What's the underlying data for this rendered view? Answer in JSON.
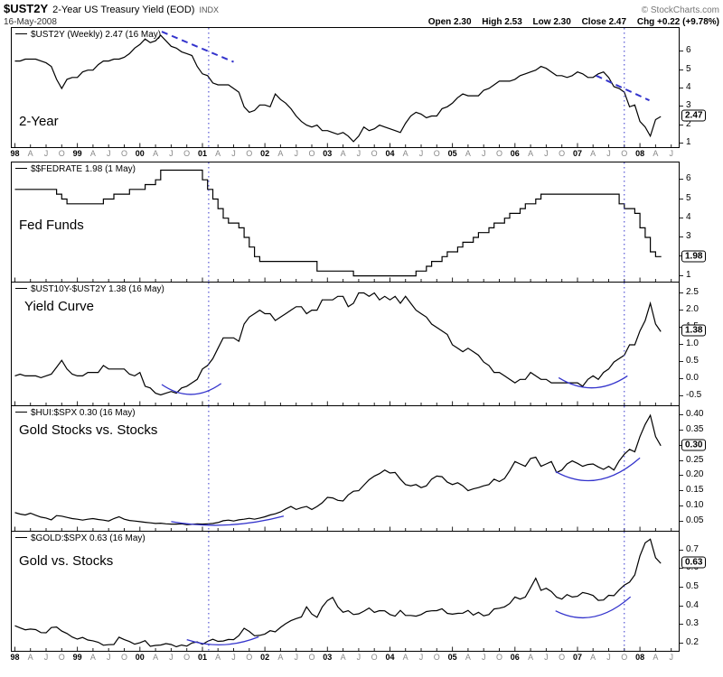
{
  "header": {
    "symbol": "$UST2Y",
    "title": "2-Year US Treasury Yield (EOD)",
    "exchange": "INDX",
    "date": "16-May-2008",
    "copyright": "© StockCharts.com",
    "quote": {
      "open": "Open 2.30",
      "high": "High 2.53",
      "low": "Low 2.30",
      "close": "Close 2.47",
      "chg": "Chg +0.22 (+9.78%)"
    }
  },
  "theme": {
    "line": "#000000",
    "annotation": "#3333cc"
  },
  "x_axis": {
    "domain": [
      1997.95,
      2008.62
    ],
    "ticks": [
      {
        "p": 1998,
        "l": "98",
        "y": true
      },
      {
        "p": 1998.25,
        "l": "A"
      },
      {
        "p": 1998.5,
        "l": "J"
      },
      {
        "p": 1998.75,
        "l": "O"
      },
      {
        "p": 1999,
        "l": "99",
        "y": true
      },
      {
        "p": 1999.25,
        "l": "A"
      },
      {
        "p": 1999.5,
        "l": "J"
      },
      {
        "p": 1999.75,
        "l": "O"
      },
      {
        "p": 2000,
        "l": "00",
        "y": true
      },
      {
        "p": 2000.25,
        "l": "A"
      },
      {
        "p": 2000.5,
        "l": "J"
      },
      {
        "p": 2000.75,
        "l": "O"
      },
      {
        "p": 2001,
        "l": "01",
        "y": true
      },
      {
        "p": 2001.25,
        "l": "A"
      },
      {
        "p": 2001.5,
        "l": "J"
      },
      {
        "p": 2001.75,
        "l": "O"
      },
      {
        "p": 2002,
        "l": "02",
        "y": true
      },
      {
        "p": 2002.25,
        "l": "A"
      },
      {
        "p": 2002.5,
        "l": "J"
      },
      {
        "p": 2002.75,
        "l": "O"
      },
      {
        "p": 2003,
        "l": "03",
        "y": true
      },
      {
        "p": 2003.25,
        "l": "A"
      },
      {
        "p": 2003.5,
        "l": "J"
      },
      {
        "p": 2003.75,
        "l": "O"
      },
      {
        "p": 2004,
        "l": "04",
        "y": true
      },
      {
        "p": 2004.25,
        "l": "A"
      },
      {
        "p": 2004.5,
        "l": "J"
      },
      {
        "p": 2004.75,
        "l": "O"
      },
      {
        "p": 2005,
        "l": "05",
        "y": true
      },
      {
        "p": 2005.25,
        "l": "A"
      },
      {
        "p": 2005.5,
        "l": "J"
      },
      {
        "p": 2005.75,
        "l": "O"
      },
      {
        "p": 2006,
        "l": "06",
        "y": true
      },
      {
        "p": 2006.25,
        "l": "A"
      },
      {
        "p": 2006.5,
        "l": "J"
      },
      {
        "p": 2006.75,
        "l": "O"
      },
      {
        "p": 2007,
        "l": "07",
        "y": true
      },
      {
        "p": 2007.25,
        "l": "A"
      },
      {
        "p": 2007.5,
        "l": "J"
      },
      {
        "p": 2007.75,
        "l": "O"
      },
      {
        "p": 2008,
        "l": "08",
        "y": true
      },
      {
        "p": 2008.25,
        "l": "A"
      },
      {
        "p": 2008.5,
        "l": "J"
      }
    ]
  },
  "chart_data": [
    {
      "id": "p1",
      "type": "line",
      "name": "ust2y",
      "legend": "$UST2Y (Weekly) 2.47 (16 May)",
      "label": "2-Year",
      "ylim": [
        0.8,
        7.3
      ],
      "yticks": [
        6,
        5,
        4,
        3,
        2,
        1
      ],
      "ytick_labels": [
        "6",
        "5",
        "4",
        "3",
        "2",
        "1"
      ],
      "last": "2.47",
      "x_start": 1998,
      "x_step_months": 1,
      "values": [
        5.5,
        5.5,
        5.6,
        5.6,
        5.6,
        5.5,
        5.4,
        5.2,
        4.5,
        4.0,
        4.5,
        4.6,
        4.6,
        4.9,
        5.0,
        5.0,
        5.3,
        5.5,
        5.5,
        5.6,
        5.6,
        5.7,
        5.9,
        6.2,
        6.4,
        6.7,
        6.5,
        6.6,
        6.9,
        6.6,
        6.3,
        6.2,
        6.0,
        5.9,
        5.8,
        5.2,
        4.8,
        4.7,
        4.3,
        4.2,
        4.2,
        4.2,
        4.0,
        3.8,
        3.0,
        2.7,
        2.8,
        3.1,
        3.1,
        3.0,
        3.7,
        3.4,
        3.2,
        2.9,
        2.5,
        2.2,
        2.0,
        1.9,
        2.0,
        1.7,
        1.7,
        1.6,
        1.5,
        1.6,
        1.4,
        1.1,
        1.4,
        1.9,
        1.7,
        1.8,
        2.0,
        1.9,
        1.8,
        1.7,
        1.6,
        2.1,
        2.5,
        2.7,
        2.6,
        2.4,
        2.5,
        2.5,
        2.9,
        3.0,
        3.2,
        3.5,
        3.7,
        3.6,
        3.6,
        3.6,
        3.9,
        4.0,
        4.2,
        4.4,
        4.4,
        4.4,
        4.5,
        4.7,
        4.8,
        4.9,
        5.0,
        5.2,
        5.1,
        4.9,
        4.7,
        4.7,
        4.6,
        4.7,
        4.9,
        4.8,
        4.6,
        4.6,
        4.8,
        4.9,
        4.6,
        4.1,
        4.0,
        3.8,
        3.0,
        3.1,
        2.2,
        1.9,
        1.4,
        2.3,
        2.47
      ],
      "annotations": [
        {
          "type": "vline",
          "x": 2001.1
        },
        {
          "type": "vline",
          "x": 2007.75
        },
        {
          "type": "dash",
          "x1": 2000.35,
          "y1": 7.1,
          "x2": 2001.5,
          "y2": 5.45
        },
        {
          "type": "dash",
          "x1": 2007.3,
          "y1": 4.7,
          "x2": 2008.15,
          "y2": 3.35
        }
      ]
    },
    {
      "id": "p2",
      "type": "line",
      "name": "fedfunds",
      "legend": "$$FEDRATE 1.98 (1 May)",
      "label": "Fed Funds",
      "ylim": [
        0.7,
        6.9
      ],
      "yticks": [
        6,
        5,
        4,
        3,
        2,
        1
      ],
      "ytick_labels": [
        "6",
        "5",
        "4",
        "3",
        "2",
        "1"
      ],
      "last": "1.98",
      "step": true,
      "x_start": 1998,
      "x_step_months": 1,
      "values": [
        5.5,
        5.5,
        5.5,
        5.5,
        5.5,
        5.5,
        5.5,
        5.5,
        5.25,
        5.0,
        4.75,
        4.75,
        4.75,
        4.75,
        4.75,
        4.75,
        4.75,
        5.0,
        5.0,
        5.25,
        5.25,
        5.25,
        5.5,
        5.5,
        5.5,
        5.75,
        5.75,
        6.0,
        6.5,
        6.5,
        6.5,
        6.5,
        6.5,
        6.5,
        6.5,
        6.5,
        6.0,
        5.5,
        5.0,
        4.5,
        4.0,
        3.75,
        3.75,
        3.5,
        3.0,
        2.5,
        2.0,
        1.75,
        1.75,
        1.75,
        1.75,
        1.75,
        1.75,
        1.75,
        1.75,
        1.75,
        1.75,
        1.75,
        1.25,
        1.25,
        1.25,
        1.25,
        1.25,
        1.25,
        1.25,
        1.0,
        1.0,
        1.0,
        1.0,
        1.0,
        1.0,
        1.0,
        1.0,
        1.0,
        1.0,
        1.0,
        1.0,
        1.25,
        1.25,
        1.5,
        1.75,
        1.75,
        2.0,
        2.25,
        2.25,
        2.5,
        2.75,
        2.75,
        3.0,
        3.25,
        3.25,
        3.5,
        3.75,
        3.75,
        4.0,
        4.25,
        4.25,
        4.5,
        4.75,
        4.75,
        5.0,
        5.25,
        5.25,
        5.25,
        5.25,
        5.25,
        5.25,
        5.25,
        5.25,
        5.25,
        5.25,
        5.25,
        5.25,
        5.25,
        5.25,
        5.25,
        4.75,
        4.5,
        4.5,
        4.25,
        3.5,
        3.0,
        2.25,
        2.0,
        1.98
      ],
      "annotations": [
        {
          "type": "vline",
          "x": 2001.1
        },
        {
          "type": "vline",
          "x": 2007.75
        }
      ]
    },
    {
      "id": "p3",
      "type": "line",
      "name": "yield-curve",
      "legend": "$UST10Y-$UST2Y 1.38 (16 May)",
      "label": "Yield Curve",
      "ylim": [
        -0.75,
        2.8
      ],
      "yticks": [
        2.5,
        2.0,
        1.5,
        1.0,
        0.5,
        0.0,
        -0.5
      ],
      "ytick_labels": [
        "2.5",
        "2.0",
        "1.5",
        "1.0",
        "0.5",
        "0.0",
        "-0.5"
      ],
      "last": "1.38",
      "x_start": 1998,
      "x_step_months": 1,
      "values": [
        0.1,
        0.15,
        0.1,
        0.1,
        0.1,
        0.05,
        0.1,
        0.15,
        0.35,
        0.55,
        0.3,
        0.15,
        0.1,
        0.1,
        0.2,
        0.2,
        0.2,
        0.4,
        0.3,
        0.3,
        0.3,
        0.3,
        0.15,
        0.1,
        0.2,
        -0.2,
        -0.25,
        -0.4,
        -0.45,
        -0.4,
        -0.35,
        -0.4,
        -0.25,
        -0.2,
        -0.1,
        0.0,
        0.3,
        0.4,
        0.6,
        0.9,
        1.2,
        1.2,
        1.2,
        1.1,
        1.6,
        1.8,
        1.9,
        2.0,
        1.9,
        1.9,
        1.7,
        1.8,
        1.9,
        2.0,
        2.1,
        2.1,
        1.9,
        2.0,
        2.0,
        2.3,
        2.3,
        2.3,
        2.4,
        2.4,
        2.1,
        2.2,
        2.5,
        2.5,
        2.4,
        2.5,
        2.3,
        2.4,
        2.3,
        2.4,
        2.2,
        2.4,
        2.2,
        2.0,
        1.9,
        1.8,
        1.6,
        1.5,
        1.4,
        1.3,
        1.0,
        0.9,
        0.8,
        0.9,
        0.8,
        0.7,
        0.5,
        0.4,
        0.2,
        0.2,
        0.1,
        0.0,
        -0.1,
        0.0,
        0.0,
        0.2,
        0.1,
        0.0,
        0.0,
        -0.1,
        -0.1,
        -0.1,
        -0.1,
        -0.1,
        -0.1,
        -0.2,
        0.0,
        0.1,
        0.0,
        0.2,
        0.3,
        0.5,
        0.6,
        0.7,
        1.0,
        1.0,
        1.4,
        1.7,
        2.2,
        1.6,
        1.38
      ],
      "annotations": [
        {
          "type": "vline",
          "x": 2001.1
        },
        {
          "type": "vline",
          "x": 2007.75
        },
        {
          "type": "arc",
          "x1": 2000.35,
          "y1": -0.15,
          "x2": 2001.3,
          "y2": -0.12,
          "sag": 0.3
        },
        {
          "type": "arc",
          "x1": 2006.7,
          "y1": 0.05,
          "x2": 2007.8,
          "y2": 0.1,
          "sag": 0.32
        }
      ]
    },
    {
      "id": "p4",
      "type": "line",
      "name": "hui-spx-ratio",
      "legend": "$HUI:$SPX 0.30 (16 May)",
      "label": "Gold Stocks vs. Stocks",
      "ylim": [
        0.02,
        0.43
      ],
      "yticks": [
        0.4,
        0.35,
        0.3,
        0.25,
        0.2,
        0.15,
        0.1,
        0.05
      ],
      "ytick_labels": [
        "0.40",
        "0.35",
        "0.30",
        "0.25",
        "0.20",
        "0.15",
        "0.10",
        "0.05"
      ],
      "last": "0.30",
      "x_start": 1998,
      "x_step_months": 1,
      "values": [
        0.08,
        0.075,
        0.072,
        0.078,
        0.071,
        0.065,
        0.062,
        0.056,
        0.07,
        0.068,
        0.064,
        0.06,
        0.058,
        0.055,
        0.058,
        0.06,
        0.057,
        0.055,
        0.052,
        0.06,
        0.066,
        0.058,
        0.054,
        0.052,
        0.05,
        0.048,
        0.046,
        0.044,
        0.045,
        0.043,
        0.042,
        0.042,
        0.043,
        0.04,
        0.041,
        0.043,
        0.042,
        0.043,
        0.044,
        0.047,
        0.053,
        0.055,
        0.052,
        0.056,
        0.058,
        0.061,
        0.058,
        0.062,
        0.066,
        0.072,
        0.076,
        0.082,
        0.092,
        0.1,
        0.09,
        0.096,
        0.1,
        0.09,
        0.1,
        0.112,
        0.13,
        0.128,
        0.12,
        0.118,
        0.138,
        0.15,
        0.152,
        0.17,
        0.188,
        0.2,
        0.208,
        0.22,
        0.21,
        0.212,
        0.19,
        0.172,
        0.168,
        0.172,
        0.162,
        0.168,
        0.19,
        0.2,
        0.198,
        0.18,
        0.172,
        0.178,
        0.168,
        0.152,
        0.158,
        0.162,
        0.168,
        0.172,
        0.19,
        0.182,
        0.192,
        0.218,
        0.248,
        0.24,
        0.232,
        0.258,
        0.262,
        0.232,
        0.24,
        0.248,
        0.212,
        0.22,
        0.24,
        0.25,
        0.242,
        0.232,
        0.238,
        0.24,
        0.23,
        0.222,
        0.232,
        0.22,
        0.25,
        0.272,
        0.288,
        0.28,
        0.33,
        0.37,
        0.4,
        0.33,
        0.3
      ],
      "annotations": [
        {
          "type": "vline",
          "x": 2001.1
        },
        {
          "type": "vline",
          "x": 2007.75
        },
        {
          "type": "arc",
          "x1": 2000.5,
          "y1": 0.05,
          "x2": 2002.3,
          "y2": 0.068,
          "sag": 0.02
        },
        {
          "type": "arc",
          "x1": 2006.65,
          "y1": 0.215,
          "x2": 2008.0,
          "y2": 0.26,
          "sag": 0.05
        }
      ]
    },
    {
      "id": "p5",
      "type": "line",
      "name": "gold-spx-ratio",
      "legend": "$GOLD:$SPX 0.63 (16 May)",
      "label": "Gold vs. Stocks",
      "ylim": [
        0.16,
        0.8
      ],
      "yticks": [
        0.7,
        0.6,
        0.5,
        0.4,
        0.3,
        0.2
      ],
      "ytick_labels": [
        "0.7",
        "0.6",
        "0.5",
        "0.4",
        "0.3",
        "0.2"
      ],
      "last": "0.63",
      "x_start": 1998,
      "x_step_months": 1,
      "values": [
        0.295,
        0.283,
        0.273,
        0.277,
        0.274,
        0.258,
        0.257,
        0.285,
        0.288,
        0.266,
        0.253,
        0.234,
        0.223,
        0.232,
        0.218,
        0.214,
        0.206,
        0.19,
        0.193,
        0.194,
        0.233,
        0.22,
        0.21,
        0.196,
        0.203,
        0.215,
        0.184,
        0.189,
        0.191,
        0.199,
        0.194,
        0.182,
        0.191,
        0.185,
        0.202,
        0.208,
        0.195,
        0.211,
        0.222,
        0.211,
        0.213,
        0.221,
        0.22,
        0.242,
        0.281,
        0.264,
        0.241,
        0.243,
        0.25,
        0.268,
        0.262,
        0.286,
        0.306,
        0.322,
        0.333,
        0.342,
        0.396,
        0.358,
        0.34,
        0.395,
        0.43,
        0.447,
        0.396,
        0.367,
        0.376,
        0.355,
        0.359,
        0.373,
        0.39,
        0.366,
        0.376,
        0.375,
        0.355,
        0.346,
        0.377,
        0.35,
        0.35,
        0.346,
        0.355,
        0.371,
        0.375,
        0.376,
        0.386,
        0.361,
        0.357,
        0.361,
        0.362,
        0.377,
        0.352,
        0.367,
        0.348,
        0.355,
        0.385,
        0.389,
        0.396,
        0.414,
        0.449,
        0.438,
        0.449,
        0.499,
        0.55,
        0.485,
        0.496,
        0.478,
        0.448,
        0.438,
        0.462,
        0.449,
        0.453,
        0.473,
        0.467,
        0.457,
        0.431,
        0.433,
        0.458,
        0.456,
        0.487,
        0.513,
        0.529,
        0.568,
        0.67,
        0.74,
        0.76,
        0.66,
        0.63
      ],
      "annotations": [
        {
          "type": "vline",
          "x": 2001.1
        },
        {
          "type": "vline",
          "x": 2007.75
        },
        {
          "type": "arc",
          "x1": 2000.75,
          "y1": 0.22,
          "x2": 2001.9,
          "y2": 0.235,
          "sag": 0.035
        },
        {
          "type": "arc",
          "x1": 2006.65,
          "y1": 0.375,
          "x2": 2007.85,
          "y2": 0.45,
          "sag": 0.07
        }
      ]
    }
  ]
}
